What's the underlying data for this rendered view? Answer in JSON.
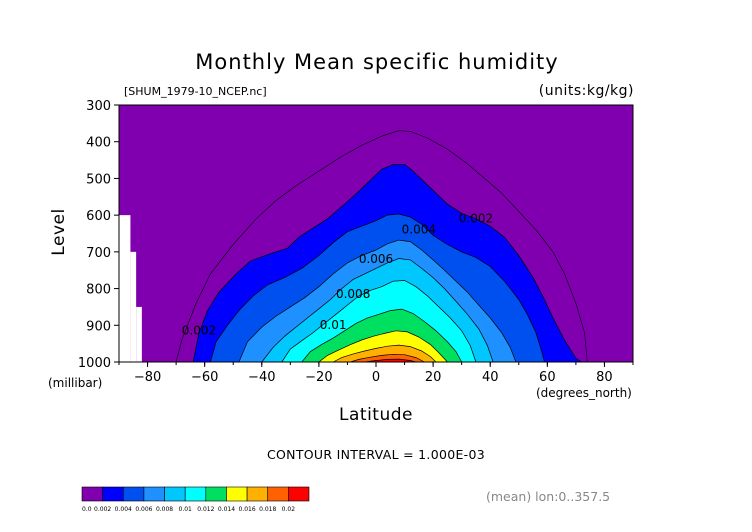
{
  "chart_data": {
    "type": "contour",
    "title": "Monthly Mean specific humidity",
    "file_label": "[SHUM_1979-10_NCEP.nc]",
    "units_label": "(units:kg/kg)",
    "xlabel": "Latitude",
    "xunits": "(degrees_north)",
    "ylabel": "Level",
    "yunits": "(millibar)",
    "xlim": [
      -90,
      90
    ],
    "ylim": [
      1000,
      300
    ],
    "x_ticks": [
      -80,
      -60,
      -40,
      -20,
      0,
      20,
      40,
      60,
      80
    ],
    "x_tick_labels": [
      "−80",
      "−60",
      "−40",
      "−20",
      "0",
      "20",
      "40",
      "60",
      "80"
    ],
    "y_ticks": [
      300,
      400,
      500,
      600,
      700,
      800,
      900,
      1000
    ],
    "y_tick_labels": [
      "300",
      "400",
      "500",
      "600",
      "700",
      "800",
      "900",
      "1000"
    ],
    "contour_interval_text": "CONTOUR INTERVAL = 1.000E-03",
    "mean_note": "(mean) lon:0..357.5",
    "contour_labels": [
      {
        "text": "0.002",
        "lat": 35,
        "level": 620
      },
      {
        "text": "0.004",
        "lat": 15,
        "level": 650
      },
      {
        "text": "0.006",
        "lat": 0,
        "level": 730
      },
      {
        "text": "0.008",
        "lat": -8,
        "level": 825
      },
      {
        "text": "0.01",
        "lat": -15,
        "level": 910
      },
      {
        "text": "0.002",
        "lat": -62,
        "level": 925
      }
    ],
    "colorbar": {
      "boundaries": [
        "0.0",
        "0.002",
        "0.004",
        "0.006",
        "0.008",
        "0.01",
        "0.012",
        "0.014",
        "0.016",
        "0.018",
        "0.02"
      ],
      "colors": [
        "#8000b0",
        "#0000ff",
        "#0050f0",
        "#1e90ff",
        "#00c8ff",
        "#00ffff",
        "#00e060",
        "#ffff00",
        "#ffb000",
        "#ff6000",
        "#ff0000"
      ]
    },
    "missing_regions": [
      {
        "lat": [
          -90,
          -86
        ],
        "level": [
          600,
          1000
        ]
      },
      {
        "lat": [
          -86,
          -84
        ],
        "level": [
          700,
          1000
        ]
      },
      {
        "lat": [
          -84,
          -82
        ],
        "level": [
          850,
          1000
        ]
      }
    ],
    "levels": [
      {
        "value": 0.001,
        "type": "line",
        "points": [
          [
            -70,
            1000
          ],
          [
            -68,
            940
          ],
          [
            -63,
            840
          ],
          [
            -58,
            760
          ],
          [
            -50,
            680
          ],
          [
            -42,
            610
          ],
          [
            -35,
            560
          ],
          [
            -28,
            520
          ],
          [
            -20,
            480
          ],
          [
            -12,
            440
          ],
          [
            -5,
            410
          ],
          [
            2,
            385
          ],
          [
            8,
            370
          ],
          [
            12,
            372
          ],
          [
            18,
            390
          ],
          [
            25,
            420
          ],
          [
            32,
            460
          ],
          [
            38,
            500
          ],
          [
            44,
            540
          ],
          [
            50,
            590
          ],
          [
            56,
            640
          ],
          [
            62,
            700
          ],
          [
            66,
            760
          ],
          [
            70,
            840
          ],
          [
            73,
            920
          ],
          [
            74,
            1000
          ]
        ]
      },
      {
        "value": 0.002,
        "color_index": 1,
        "points": [
          [
            -64,
            1000
          ],
          [
            -62,
            920
          ],
          [
            -59,
            860
          ],
          [
            -55,
            810
          ],
          [
            -49,
            760
          ],
          [
            -44,
            725
          ],
          [
            -37,
            705
          ],
          [
            -31,
            690
          ],
          [
            -27,
            660
          ],
          [
            -23,
            640
          ],
          [
            -17,
            610
          ],
          [
            -11,
            570
          ],
          [
            -6,
            535
          ],
          [
            -2,
            505
          ],
          [
            2,
            475
          ],
          [
            6,
            462
          ],
          [
            10,
            462
          ],
          [
            13,
            480
          ],
          [
            17,
            510
          ],
          [
            21,
            540
          ],
          [
            25,
            570
          ],
          [
            30,
            595
          ],
          [
            35,
            610
          ],
          [
            40,
            630
          ],
          [
            45,
            660
          ],
          [
            50,
            710
          ],
          [
            55,
            770
          ],
          [
            59,
            830
          ],
          [
            62,
            880
          ],
          [
            66,
            940
          ],
          [
            70,
            990
          ],
          [
            72,
            1000
          ]
        ]
      },
      {
        "value": 0.003,
        "color_index": 2,
        "points": [
          [
            -58,
            1000
          ],
          [
            -56,
            945
          ],
          [
            -52,
            900
          ],
          [
            -48,
            860
          ],
          [
            -43,
            820
          ],
          [
            -38,
            790
          ],
          [
            -32,
            770
          ],
          [
            -26,
            745
          ],
          [
            -20,
            710
          ],
          [
            -15,
            675
          ],
          [
            -10,
            645
          ],
          [
            -5,
            630
          ],
          [
            0,
            615
          ],
          [
            4,
            600
          ],
          [
            8,
            597
          ],
          [
            12,
            605
          ],
          [
            16,
            625
          ],
          [
            20,
            655
          ],
          [
            25,
            680
          ],
          [
            30,
            700
          ],
          [
            35,
            715
          ],
          [
            40,
            740
          ],
          [
            45,
            780
          ],
          [
            50,
            830
          ],
          [
            53,
            870
          ],
          [
            56,
            920
          ],
          [
            58,
            970
          ],
          [
            59,
            1000
          ]
        ]
      },
      {
        "value": 0.004,
        "color_index": 3,
        "points": [
          [
            -48,
            1000
          ],
          [
            -45,
            945
          ],
          [
            -40,
            905
          ],
          [
            -35,
            875
          ],
          [
            -30,
            850
          ],
          [
            -25,
            825
          ],
          [
            -20,
            795
          ],
          [
            -15,
            760
          ],
          [
            -10,
            730
          ],
          [
            -5,
            710
          ],
          [
            0,
            695
          ],
          [
            4,
            678
          ],
          [
            8,
            668
          ],
          [
            12,
            672
          ],
          [
            16,
            695
          ],
          [
            20,
            722
          ],
          [
            24,
            750
          ],
          [
            28,
            780
          ],
          [
            32,
            810
          ],
          [
            36,
            845
          ],
          [
            40,
            880
          ],
          [
            44,
            920
          ],
          [
            47,
            960
          ],
          [
            49,
            1000
          ]
        ]
      },
      {
        "value": 0.005,
        "color_index": 4,
        "points": [
          [
            -40,
            1000
          ],
          [
            -36,
            960
          ],
          [
            -32,
            930
          ],
          [
            -28,
            905
          ],
          [
            -24,
            880
          ],
          [
            -20,
            855
          ],
          [
            -16,
            830
          ],
          [
            -12,
            800
          ],
          [
            -8,
            775
          ],
          [
            -4,
            760
          ],
          [
            0,
            745
          ],
          [
            4,
            730
          ],
          [
            8,
            718
          ],
          [
            12,
            722
          ],
          [
            16,
            745
          ],
          [
            20,
            770
          ],
          [
            24,
            800
          ],
          [
            28,
            835
          ],
          [
            32,
            870
          ],
          [
            36,
            910
          ],
          [
            39,
            955
          ],
          [
            41,
            1000
          ]
        ]
      },
      {
        "value": 0.006,
        "color_index": 5,
        "points": [
          [
            -33,
            1000
          ],
          [
            -30,
            965
          ],
          [
            -26,
            942
          ],
          [
            -22,
            920
          ],
          [
            -18,
            895
          ],
          [
            -14,
            870
          ],
          [
            -10,
            845
          ],
          [
            -6,
            820
          ],
          [
            -2,
            805
          ],
          [
            2,
            795
          ],
          [
            6,
            780
          ],
          [
            10,
            778
          ],
          [
            14,
            795
          ],
          [
            18,
            820
          ],
          [
            22,
            850
          ],
          [
            26,
            880
          ],
          [
            30,
            915
          ],
          [
            33,
            955
          ],
          [
            35,
            1000
          ]
        ]
      },
      {
        "value": 0.007,
        "color_index": 6,
        "points": [
          [
            -26,
            1000
          ],
          [
            -23,
            972
          ],
          [
            -19,
            952
          ],
          [
            -15,
            935
          ],
          [
            -11,
            915
          ],
          [
            -7,
            895
          ],
          [
            -3,
            880
          ],
          [
            1,
            870
          ],
          [
            5,
            860
          ],
          [
            9,
            856
          ],
          [
            13,
            868
          ],
          [
            17,
            890
          ],
          [
            21,
            915
          ],
          [
            25,
            945
          ],
          [
            28,
            972
          ],
          [
            30,
            1000
          ]
        ]
      },
      {
        "value": 0.008,
        "color_index": 7,
        "points": [
          [
            -20,
            1000
          ],
          [
            -17,
            982
          ],
          [
            -13,
            967
          ],
          [
            -9,
            953
          ],
          [
            -5,
            940
          ],
          [
            -1,
            930
          ],
          [
            3,
            922
          ],
          [
            7,
            915
          ],
          [
            11,
            918
          ],
          [
            15,
            932
          ],
          [
            19,
            952
          ],
          [
            22,
            975
          ],
          [
            25,
            1000
          ]
        ]
      },
      {
        "value": 0.009,
        "color_index": 8,
        "points": [
          [
            -15,
            1000
          ],
          [
            -12,
            988
          ],
          [
            -8,
            978
          ],
          [
            -4,
            970
          ],
          [
            0,
            963
          ],
          [
            4,
            957
          ],
          [
            8,
            954
          ],
          [
            12,
            958
          ],
          [
            16,
            970
          ],
          [
            19,
            985
          ],
          [
            21,
            1000
          ]
        ]
      },
      {
        "value": 0.01,
        "color_index": 9,
        "points": [
          [
            -9,
            1000
          ],
          [
            -6,
            993
          ],
          [
            -2,
            987
          ],
          [
            2,
            982
          ],
          [
            6,
            979
          ],
          [
            10,
            980
          ],
          [
            14,
            988
          ],
          [
            17,
            1000
          ]
        ]
      },
      {
        "value": 0.011,
        "color_index": 10,
        "points": [
          [
            -4,
            1000
          ],
          [
            0,
            996
          ],
          [
            4,
            993
          ],
          [
            8,
            992
          ],
          [
            12,
            996
          ],
          [
            14,
            1000
          ]
        ]
      }
    ]
  }
}
